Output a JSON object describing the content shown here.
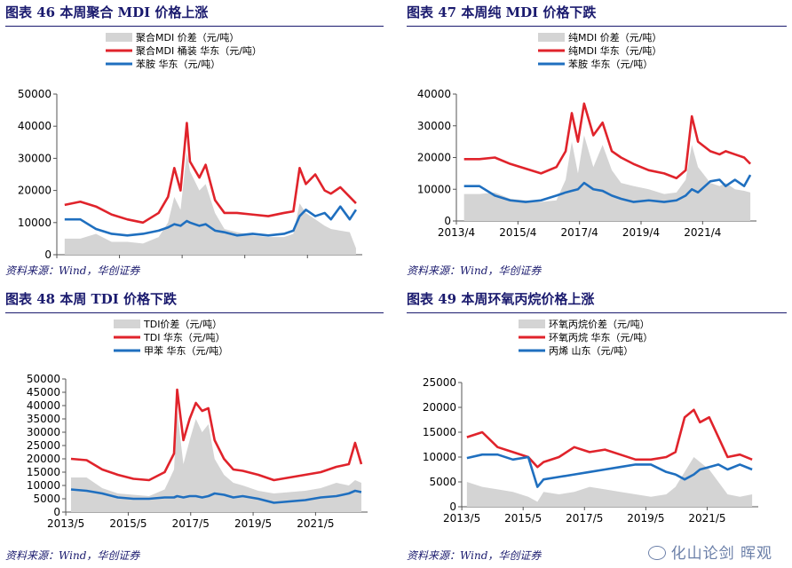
{
  "watermark": "化山论剑 晖观",
  "colors": {
    "spread": "#d4d4d4",
    "red": "#e0232b",
    "blue": "#1f6fbf",
    "title": "#1a1a6e"
  },
  "chart_data": [
    {
      "type": "area+line",
      "title": "图表 46  本周聚合 MDI 价格上涨",
      "source": "资料来源：Wind，华创证券",
      "legend": [
        "聚合MDI 价差（元/吨）",
        "聚合MDI 桶装 华东（元/吨）",
        "苯胺 华东（元/吨）"
      ],
      "ylim": [
        0,
        50000
      ],
      "yticks": [
        "0",
        "10000",
        "20000",
        "30000",
        "40000",
        "50000"
      ],
      "xticks": [
        "2013/4",
        "2015/4",
        "2017/4",
        "2019/4",
        "2021/4"
      ],
      "xlim": [
        2013.25,
        2023.0
      ],
      "x": [
        2013.5,
        2014.0,
        2014.5,
        2015.0,
        2015.5,
        2016.0,
        2016.5,
        2016.8,
        2017.0,
        2017.2,
        2017.4,
        2017.5,
        2017.8,
        2018.0,
        2018.3,
        2018.6,
        2019.0,
        2019.5,
        2020.0,
        2020.5,
        2020.8,
        2021.0,
        2021.2,
        2021.5,
        2021.8,
        2022.0,
        2022.3,
        2022.6,
        2022.8
      ],
      "series": [
        {
          "name": "聚合MDI 价差（元/吨）",
          "values": [
            5000,
            5000,
            6500,
            4000,
            4000,
            3500,
            5500,
            10000,
            18000,
            14000,
            32000,
            26000,
            20000,
            22000,
            13000,
            8000,
            7000,
            6000,
            5500,
            5500,
            6500,
            16000,
            13000,
            11000,
            9000,
            8000,
            7500,
            7000,
            2000
          ]
        },
        {
          "name": "聚合MDI 桶装 华东（元/吨）",
          "values": [
            15500,
            16500,
            15000,
            12500,
            11000,
            10000,
            13000,
            18000,
            27000,
            20000,
            41000,
            29000,
            24000,
            28000,
            17000,
            13000,
            13000,
            12500,
            12000,
            13000,
            13500,
            27000,
            22000,
            25000,
            20000,
            19000,
            21000,
            18000,
            16000
          ]
        },
        {
          "name": "苯胺 华东（元/吨）",
          "values": [
            11000,
            11000,
            8000,
            6500,
            6000,
            6500,
            7500,
            8500,
            9500,
            9000,
            10500,
            10000,
            9000,
            9500,
            7500,
            7000,
            6000,
            6500,
            6000,
            6500,
            7500,
            12000,
            14000,
            12000,
            13000,
            11000,
            15000,
            11000,
            14000
          ]
        }
      ]
    },
    {
      "type": "area+line",
      "title": "图表 47  本周纯 MDI 价格下跌",
      "source": "资料来源：Wind，华创证券",
      "legend": [
        "纯MDI 价差（元/吨）",
        "纯MDI 华东（元/吨）",
        "苯胺 华东（元/吨）"
      ],
      "ylim": [
        0,
        40000
      ],
      "yticks": [
        "0",
        "10000",
        "20000",
        "30000",
        "40000"
      ],
      "xticks": [
        "2013/4",
        "2015/4",
        "2017/4",
        "2019/4",
        "2021/4"
      ],
      "xlim": [
        2013.25,
        2023.0
      ],
      "x": [
        2013.5,
        2014.0,
        2014.5,
        2015.0,
        2015.5,
        2016.0,
        2016.5,
        2016.8,
        2017.0,
        2017.2,
        2017.4,
        2017.7,
        2018.0,
        2018.3,
        2018.6,
        2019.0,
        2019.5,
        2020.0,
        2020.4,
        2020.7,
        2020.9,
        2021.1,
        2021.5,
        2021.8,
        2022.0,
        2022.3,
        2022.6,
        2022.8
      ],
      "series": [
        {
          "name": "纯MDI 价差（元/吨）",
          "values": [
            8500,
            8500,
            9000,
            7000,
            6500,
            6000,
            6500,
            13000,
            25000,
            15000,
            27000,
            17000,
            24000,
            16000,
            12000,
            11000,
            10000,
            8500,
            9000,
            13000,
            24000,
            17000,
            12000,
            11000,
            12000,
            10000,
            9500,
            9000
          ]
        },
        {
          "name": "纯MDI 华东（元/吨）",
          "values": [
            19500,
            19500,
            20000,
            18000,
            16500,
            15000,
            17000,
            22000,
            34000,
            25000,
            37000,
            27000,
            31000,
            22000,
            20000,
            18000,
            16000,
            15000,
            13500,
            16000,
            33000,
            25000,
            22000,
            21000,
            22000,
            21000,
            20000,
            18000
          ]
        },
        {
          "name": "苯胺 华东（元/吨）",
          "values": [
            11000,
            11000,
            8000,
            6500,
            6000,
            6500,
            8000,
            9000,
            9500,
            10000,
            12000,
            10000,
            9500,
            8000,
            7000,
            6000,
            6500,
            6000,
            6500,
            8000,
            10000,
            9000,
            12500,
            13000,
            11000,
            13000,
            11000,
            14500
          ]
        }
      ]
    },
    {
      "type": "area+line",
      "title": "图表 48  本周 TDI 价格下跌",
      "source": "资料来源：Wind，华创证券",
      "legend": [
        "TDI价差（元/吨）",
        "TDI 华东（元/吨）",
        "甲苯 华东（元/吨）"
      ],
      "ylim": [
        0,
        50000
      ],
      "yticks": [
        "0",
        "5000",
        "10000",
        "15000",
        "20000",
        "25000",
        "30000",
        "35000",
        "40000",
        "45000",
        "50000"
      ],
      "xticks": [
        "2013/5",
        "2015/5",
        "2017/5",
        "2019/5",
        "2021/5"
      ],
      "xlim": [
        2013.33,
        2023.0
      ],
      "x": [
        2013.5,
        2014.0,
        2014.5,
        2015.0,
        2015.5,
        2016.0,
        2016.5,
        2016.8,
        2016.9,
        2017.1,
        2017.3,
        2017.5,
        2017.7,
        2017.9,
        2018.1,
        2018.4,
        2018.7,
        2019.0,
        2019.5,
        2020.0,
        2020.5,
        2021.0,
        2021.5,
        2022.0,
        2022.4,
        2022.6,
        2022.8
      ],
      "series": [
        {
          "name": "TDI价差（元/吨）",
          "values": [
            13000,
            13000,
            9000,
            7000,
            6500,
            6000,
            8500,
            16000,
            38000,
            18000,
            27000,
            35000,
            30000,
            33000,
            20000,
            14000,
            11000,
            10000,
            8000,
            7000,
            7500,
            8000,
            9000,
            11000,
            10000,
            12000,
            11000
          ]
        },
        {
          "name": "TDI 华东（元/吨）",
          "values": [
            20000,
            19500,
            16000,
            14000,
            12500,
            12000,
            15000,
            22000,
            46000,
            27000,
            35000,
            41000,
            38000,
            39000,
            27000,
            20000,
            16000,
            15500,
            14000,
            12000,
            13000,
            14000,
            15000,
            17000,
            18000,
            26000,
            18000
          ]
        },
        {
          "name": "甲苯 华东（元/吨）",
          "values": [
            8500,
            8000,
            7000,
            5500,
            5000,
            5000,
            5500,
            5500,
            6000,
            5500,
            6000,
            6000,
            5500,
            6000,
            7000,
            6500,
            5500,
            6000,
            5000,
            3500,
            4000,
            4500,
            5500,
            6000,
            7000,
            8000,
            7500
          ]
        }
      ]
    },
    {
      "type": "area+line",
      "title": "图表 49  本周环氧丙烷价格上涨",
      "source": "资料来源：Wind，华创证券",
      "legend": [
        "环氧丙烷价差（元/吨）",
        "环氧丙烷 华东（元/吨）",
        "丙烯 山东（元/吨）"
      ],
      "ylim": [
        0,
        25000
      ],
      "yticks": [
        "0",
        "5000",
        "10000",
        "15000",
        "20000",
        "25000"
      ],
      "xticks": [
        "2013/5",
        "2015/5",
        "2017/5",
        "2019/5",
        "2021/5"
      ],
      "xlim": [
        2013.33,
        2023.0
      ],
      "x": [
        2013.5,
        2014.0,
        2014.5,
        2015.0,
        2015.5,
        2015.8,
        2016.0,
        2016.5,
        2017.0,
        2017.5,
        2018.0,
        2018.5,
        2019.0,
        2019.5,
        2020.0,
        2020.3,
        2020.6,
        2020.9,
        2021.1,
        2021.4,
        2021.7,
        2022.0,
        2022.4,
        2022.8
      ],
      "series": [
        {
          "name": "环氧丙烷价差（元/吨）",
          "values": [
            5000,
            4000,
            3500,
            3000,
            2000,
            1000,
            3000,
            2500,
            3000,
            4000,
            3500,
            3000,
            2500,
            2000,
            2500,
            4000,
            7000,
            10000,
            9000,
            7500,
            5000,
            2500,
            2000,
            2500
          ]
        },
        {
          "name": "环氧丙烷 华东（元/吨）",
          "values": [
            14000,
            15000,
            12000,
            11000,
            10000,
            8000,
            9000,
            10000,
            12000,
            11000,
            11500,
            10500,
            9500,
            9500,
            10000,
            11000,
            18000,
            19500,
            17000,
            18000,
            14000,
            10000,
            10500,
            9500
          ]
        },
        {
          "name": "丙烯 山东（元/吨）",
          "values": [
            9800,
            10500,
            10500,
            9500,
            10000,
            4000,
            5500,
            6000,
            6500,
            7000,
            7500,
            8000,
            8500,
            8500,
            7000,
            6500,
            5500,
            6500,
            7500,
            8000,
            8500,
            7500,
            8500,
            7500
          ]
        }
      ]
    }
  ]
}
